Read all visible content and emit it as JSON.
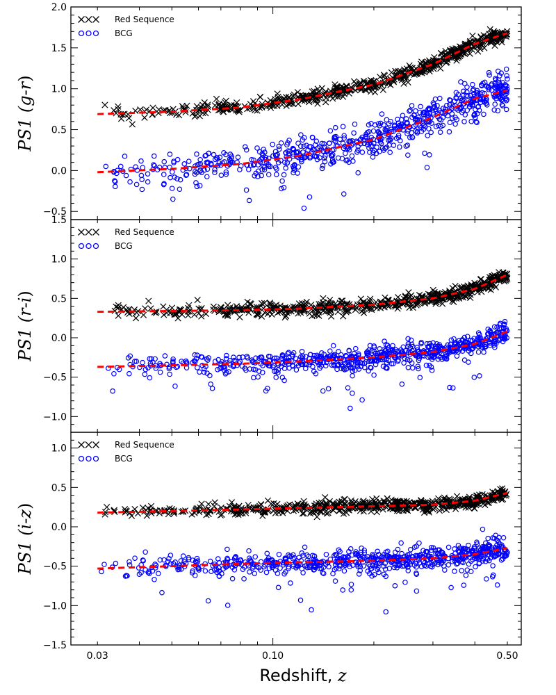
{
  "colors": {
    "red_sequence": "#000000",
    "bcg": "#0000ff",
    "fit": "#ff0000",
    "axes": "#000000"
  },
  "chart_data": [
    {
      "type": "scatter",
      "panel": "g-r",
      "ylabel_prefix": "PS1",
      "ylabel_color": "g-r",
      "xscale": "log",
      "xlim": [
        0.025,
        0.55
      ],
      "ylim": [
        -0.6,
        2.0
      ],
      "yticks": [
        -0.5,
        0.0,
        0.5,
        1.0,
        1.5,
        2.0
      ],
      "ytick_labels": [
        "−0.5",
        "0.0",
        "0.5",
        "1.0",
        "1.5",
        "2.0"
      ],
      "legend": {
        "placement": "top-left",
        "entries": [
          "Red Sequence",
          "BCG"
        ]
      },
      "series": [
        {
          "name": "Red Sequence",
          "marker": "x",
          "color": "#000000",
          "trend": [
            [
              0.03,
              0.69
            ],
            [
              0.05,
              0.72
            ],
            [
              0.08,
              0.77
            ],
            [
              0.12,
              0.87
            ],
            [
              0.2,
              1.05
            ],
            [
              0.3,
              1.3
            ],
            [
              0.4,
              1.55
            ],
            [
              0.5,
              1.68
            ]
          ],
          "scatter": 0.04,
          "n": 600
        },
        {
          "name": "BCG",
          "marker": "o",
          "color": "#0000ff",
          "trend": [
            [
              0.03,
              -0.02
            ],
            [
              0.05,
              0.02
            ],
            [
              0.08,
              0.08
            ],
            [
              0.12,
              0.18
            ],
            [
              0.2,
              0.38
            ],
            [
              0.3,
              0.65
            ],
            [
              0.4,
              0.88
            ],
            [
              0.5,
              0.98
            ]
          ],
          "scatter": 0.11,
          "n": 700
        }
      ],
      "fits": [
        {
          "for": "Red Sequence",
          "points": [
            [
              0.03,
              0.69
            ],
            [
              0.05,
              0.72
            ],
            [
              0.08,
              0.77
            ],
            [
              0.12,
              0.87
            ],
            [
              0.2,
              1.05
            ],
            [
              0.3,
              1.3
            ],
            [
              0.4,
              1.55
            ],
            [
              0.5,
              1.68
            ]
          ]
        },
        {
          "for": "BCG",
          "points": [
            [
              0.03,
              -0.02
            ],
            [
              0.05,
              0.02
            ],
            [
              0.08,
              0.08
            ],
            [
              0.12,
              0.18
            ],
            [
              0.2,
              0.38
            ],
            [
              0.3,
              0.65
            ],
            [
              0.4,
              0.88
            ],
            [
              0.5,
              0.98
            ]
          ]
        }
      ]
    },
    {
      "type": "scatter",
      "panel": "r-i",
      "ylabel_prefix": "PS1",
      "ylabel_color": "r-i",
      "xscale": "log",
      "xlim": [
        0.025,
        0.55
      ],
      "ylim": [
        -1.2,
        1.5
      ],
      "yticks": [
        -1.0,
        -0.5,
        0.0,
        0.5,
        1.0,
        1.5
      ],
      "ytick_labels": [
        "−1.0",
        "−0.5",
        "0.0",
        "0.5",
        "1.0",
        "1.5"
      ],
      "legend": {
        "placement": "top-left",
        "entries": [
          "Red Sequence",
          "BCG"
        ]
      },
      "series": [
        {
          "name": "Red Sequence",
          "marker": "x",
          "color": "#000000",
          "trend": [
            [
              0.03,
              0.33
            ],
            [
              0.05,
              0.34
            ],
            [
              0.08,
              0.35
            ],
            [
              0.12,
              0.37
            ],
            [
              0.2,
              0.42
            ],
            [
              0.3,
              0.5
            ],
            [
              0.4,
              0.62
            ],
            [
              0.5,
              0.8
            ]
          ],
          "scatter": 0.04,
          "n": 600
        },
        {
          "name": "BCG",
          "marker": "o",
          "color": "#0000ff",
          "trend": [
            [
              0.03,
              -0.37
            ],
            [
              0.05,
              -0.35
            ],
            [
              0.08,
              -0.33
            ],
            [
              0.12,
              -0.3
            ],
            [
              0.2,
              -0.25
            ],
            [
              0.3,
              -0.18
            ],
            [
              0.4,
              -0.08
            ],
            [
              0.5,
              0.08
            ]
          ],
          "scatter": 0.07,
          "n": 700
        }
      ],
      "fits": [
        {
          "for": "Red Sequence",
          "points": [
            [
              0.03,
              0.33
            ],
            [
              0.05,
              0.34
            ],
            [
              0.08,
              0.35
            ],
            [
              0.12,
              0.37
            ],
            [
              0.2,
              0.42
            ],
            [
              0.3,
              0.5
            ],
            [
              0.4,
              0.62
            ],
            [
              0.5,
              0.8
            ]
          ]
        },
        {
          "for": "BCG",
          "points": [
            [
              0.03,
              -0.37
            ],
            [
              0.05,
              -0.35
            ],
            [
              0.08,
              -0.33
            ],
            [
              0.12,
              -0.3
            ],
            [
              0.2,
              -0.25
            ],
            [
              0.3,
              -0.18
            ],
            [
              0.4,
              -0.08
            ],
            [
              0.5,
              0.08
            ]
          ]
        }
      ]
    },
    {
      "type": "scatter",
      "panel": "i-z",
      "ylabel_prefix": "PS1",
      "ylabel_color": "i-z",
      "xscale": "log",
      "xlim": [
        0.025,
        0.55
      ],
      "xticks": [
        0.03,
        0.1,
        0.5
      ],
      "xtick_labels": [
        "0.03",
        "0.10",
        "0.50"
      ],
      "xlabel": "Redshift, ",
      "xlabel_var": "z",
      "ylim": [
        -1.5,
        1.2
      ],
      "yticks": [
        -1.5,
        -1.0,
        -0.5,
        0.0,
        0.5,
        1.0
      ],
      "ytick_labels": [
        "−1.5",
        "−1.0",
        "−0.5",
        "0.0",
        "0.5",
        "1.0"
      ],
      "legend": {
        "placement": "top-left",
        "entries": [
          "Red Sequence",
          "BCG"
        ]
      },
      "series": [
        {
          "name": "Red Sequence",
          "marker": "x",
          "color": "#000000",
          "trend": [
            [
              0.03,
              0.18
            ],
            [
              0.05,
              0.2
            ],
            [
              0.08,
              0.22
            ],
            [
              0.12,
              0.24
            ],
            [
              0.2,
              0.26
            ],
            [
              0.3,
              0.28
            ],
            [
              0.4,
              0.33
            ],
            [
              0.5,
              0.43
            ]
          ],
          "scatter": 0.04,
          "n": 600
        },
        {
          "name": "BCG",
          "marker": "o",
          "color": "#0000ff",
          "trend": [
            [
              0.03,
              -0.53
            ],
            [
              0.05,
              -0.5
            ],
            [
              0.08,
              -0.47
            ],
            [
              0.12,
              -0.45
            ],
            [
              0.2,
              -0.43
            ],
            [
              0.3,
              -0.4
            ],
            [
              0.4,
              -0.35
            ],
            [
              0.5,
              -0.27
            ]
          ],
          "scatter": 0.07,
          "n": 700
        }
      ],
      "fits": [
        {
          "for": "Red Sequence",
          "points": [
            [
              0.03,
              0.18
            ],
            [
              0.05,
              0.2
            ],
            [
              0.08,
              0.22
            ],
            [
              0.12,
              0.24
            ],
            [
              0.2,
              0.26
            ],
            [
              0.3,
              0.28
            ],
            [
              0.4,
              0.33
            ],
            [
              0.5,
              0.43
            ]
          ]
        },
        {
          "for": "BCG",
          "points": [
            [
              0.03,
              -0.53
            ],
            [
              0.05,
              -0.5
            ],
            [
              0.08,
              -0.47
            ],
            [
              0.12,
              -0.45
            ],
            [
              0.2,
              -0.43
            ],
            [
              0.3,
              -0.4
            ],
            [
              0.4,
              -0.35
            ],
            [
              0.5,
              -0.27
            ]
          ]
        }
      ]
    }
  ]
}
